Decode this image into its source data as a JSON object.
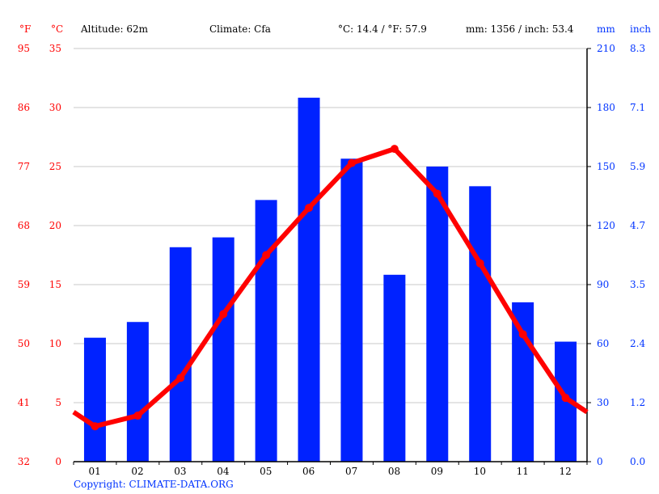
{
  "header": {
    "unit_f": "°F",
    "unit_c": "°C",
    "altitude": "Altitude: 62m",
    "climate": "Climate: Cfa",
    "temp_summary": "°C: 14.4 / °F: 57.9",
    "precip_summary": "mm: 1356 / inch: 53.4",
    "unit_mm": "mm",
    "unit_inch": "inch"
  },
  "axes": {
    "fahrenheit_ticks": [
      "95",
      "86",
      "77",
      "68",
      "59",
      "50",
      "41",
      "32"
    ],
    "celsius_ticks": [
      "35",
      "30",
      "25",
      "20",
      "15",
      "10",
      "5",
      "0"
    ],
    "mm_ticks": [
      "210",
      "180",
      "150",
      "120",
      "90",
      "60",
      "30",
      "0"
    ],
    "inch_ticks": [
      "8.3",
      "7.1",
      "5.9",
      "4.7",
      "3.5",
      "2.4",
      "1.2",
      "0.0"
    ]
  },
  "colors": {
    "precip_bar": "#0022ff",
    "temp_line": "#ff0000",
    "grid": "#c8c8c8",
    "fahrenheit_label": "#ff0000",
    "mm_label": "#0033ff"
  },
  "footer": {
    "copyright": "Copyright: CLIMATE-DATA.ORG"
  },
  "chart_data": {
    "type": "bar+line",
    "title": "Climate graph",
    "categories": [
      "01",
      "02",
      "03",
      "04",
      "05",
      "06",
      "07",
      "08",
      "09",
      "10",
      "11",
      "12"
    ],
    "series": [
      {
        "name": "Precipitation (mm)",
        "type": "bar",
        "axis": "right",
        "values": [
          63,
          71,
          109,
          114,
          133,
          185,
          154,
          95,
          150,
          140,
          81,
          61
        ]
      },
      {
        "name": "Temperature (°C)",
        "type": "line",
        "axis": "left",
        "values": [
          3.0,
          3.9,
          7.1,
          12.5,
          17.5,
          21.5,
          25.3,
          26.5,
          22.7,
          16.8,
          10.8,
          5.4
        ]
      }
    ],
    "xlabel": "",
    "ylabel_left": "°C / °F",
    "ylabel_right": "mm / inch",
    "ylim_left_c": [
      0,
      35
    ],
    "ylim_left_f": [
      32,
      95
    ],
    "ylim_right_mm": [
      0,
      210
    ],
    "ylim_right_inch": [
      0.0,
      8.3
    ],
    "grid": true,
    "legend": "none"
  }
}
